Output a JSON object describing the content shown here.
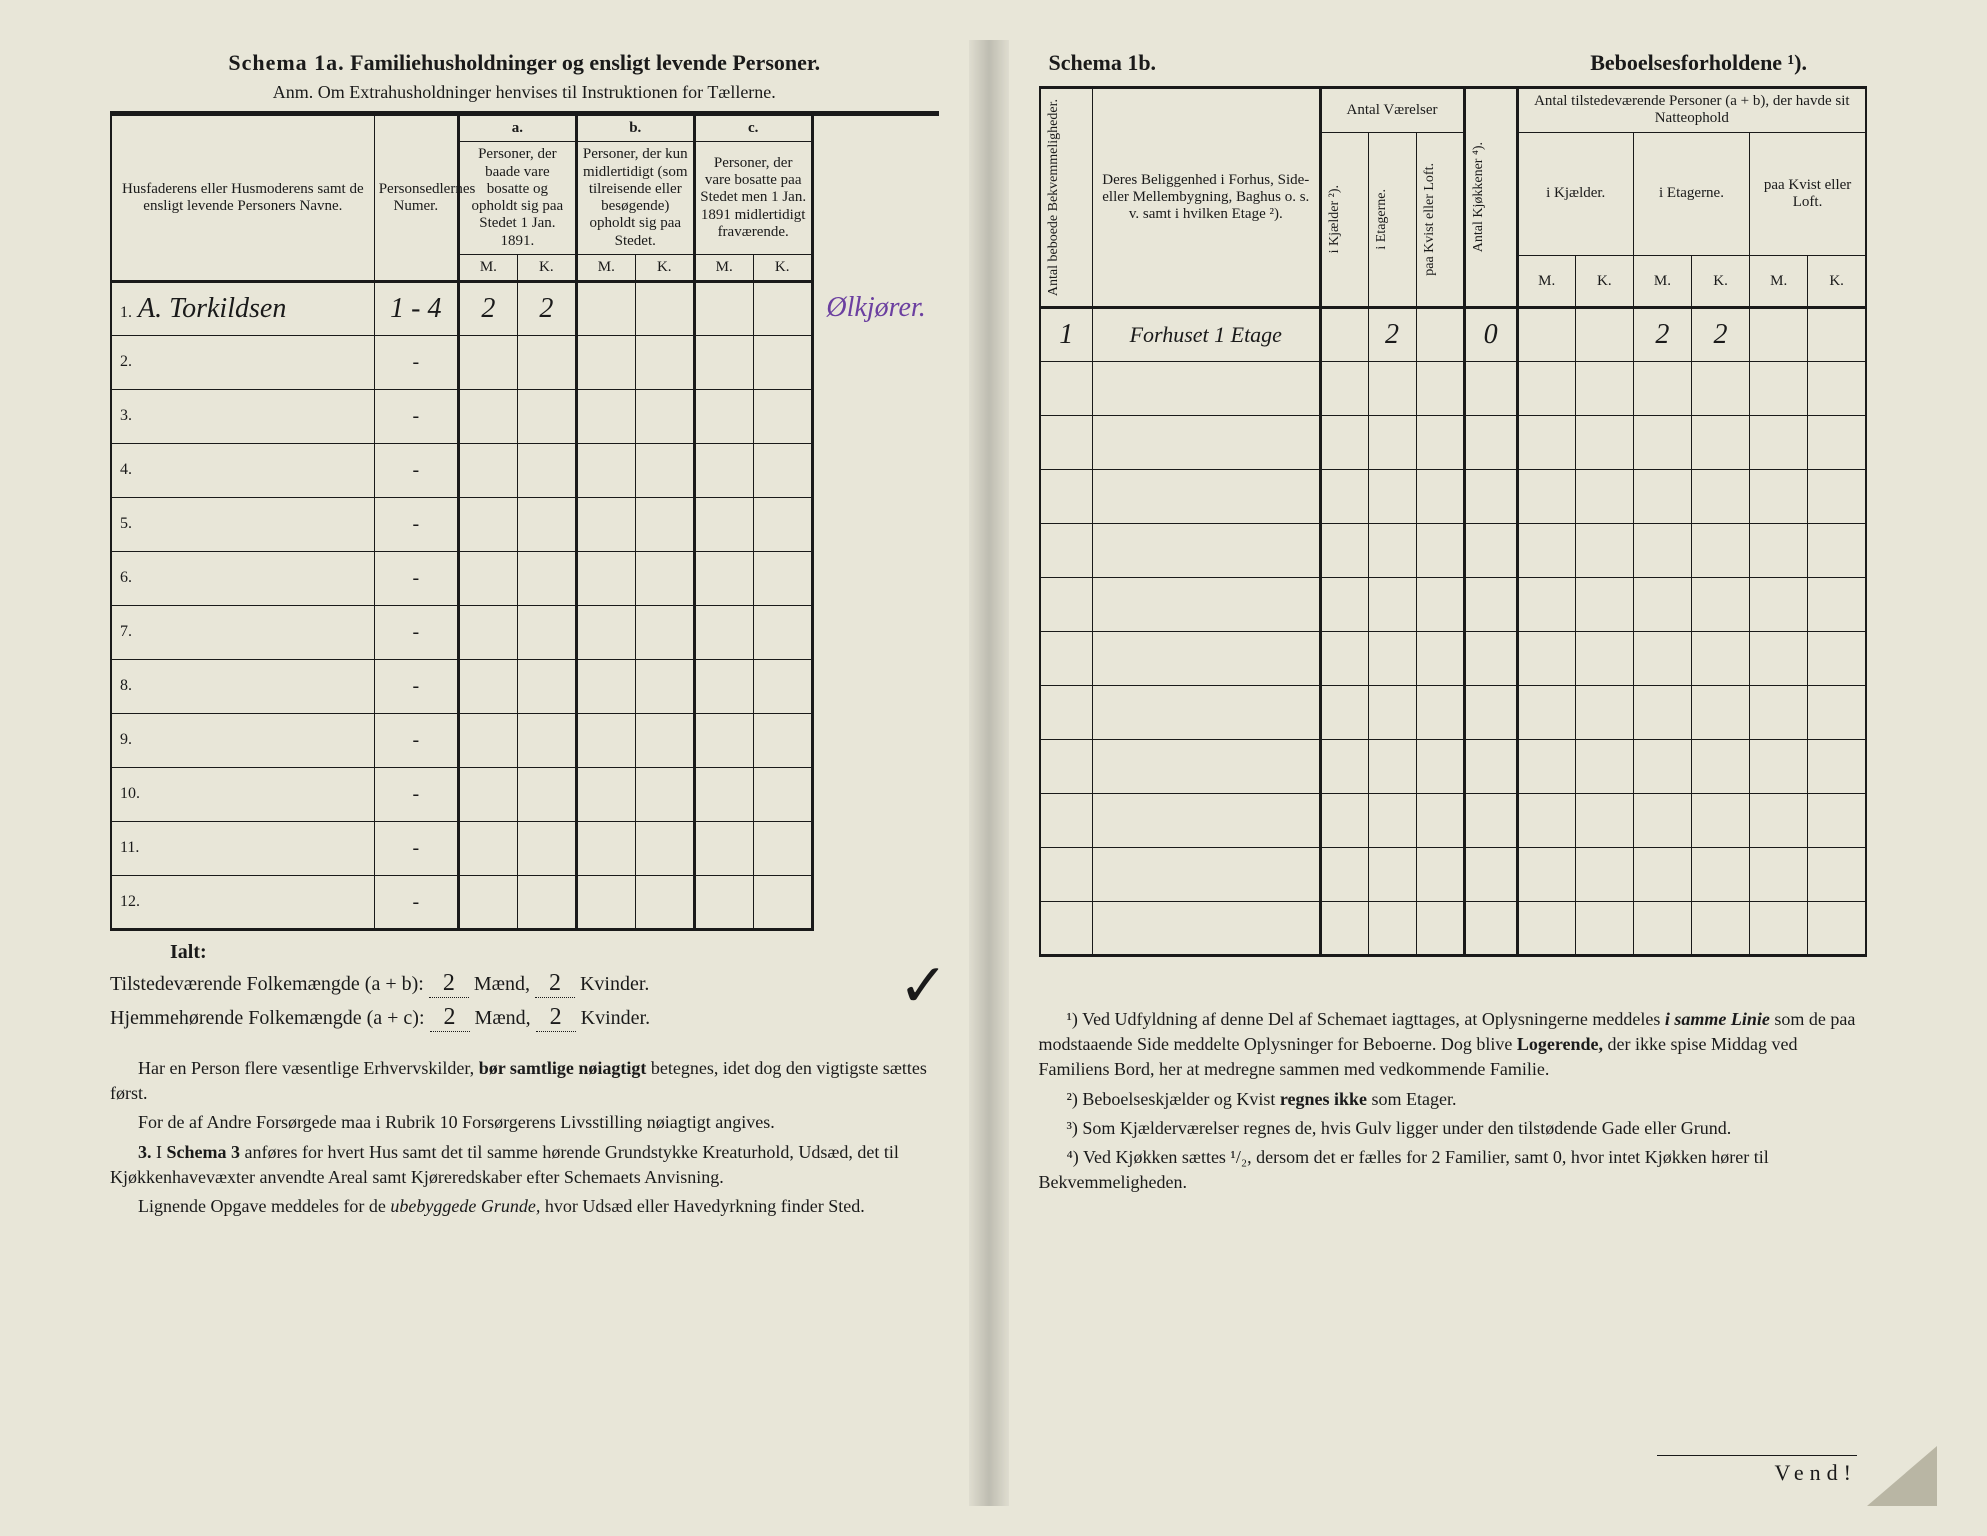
{
  "colors": {
    "paper": "#e8e6d8",
    "ink": "#1a1a1a",
    "purple_ink": "#6b3fa0",
    "dog_ear": "#b9b6a4"
  },
  "schema1a": {
    "title_lead": "Schema 1a.",
    "title_rest": "Familiehusholdninger og ensligt levende Personer.",
    "anm": "Anm. Om Extrahusholdninger henvises til Instruktionen for Tællerne.",
    "headers": {
      "name": "Husfaderens eller Husmoderens samt de ensligt levende Personers Navne.",
      "persnum": "Personsedlernes Numer.",
      "a_label": "a.",
      "a_text": "Personer, der baade vare bosatte og opholdt sig paa Stedet 1 Jan. 1891.",
      "b_label": "b.",
      "b_text": "Personer, der kun midlertidigt (som tilreisende eller besøgende) opholdt sig paa Stedet.",
      "c_label": "c.",
      "c_text": "Personer, der vare bosatte paa Stedet men 1 Jan. 1891 midlertidigt fraværende.",
      "M": "M.",
      "K": "K."
    },
    "rows": [
      {
        "n": "1.",
        "name": "A. Torkildsen",
        "num": "1 - 4",
        "aM": "2",
        "aK": "2",
        "bM": "",
        "bK": "",
        "cM": "",
        "cK": "",
        "ann": "Ølkjører."
      },
      {
        "n": "2.",
        "num": "-"
      },
      {
        "n": "3.",
        "num": "-"
      },
      {
        "n": "4.",
        "num": "-"
      },
      {
        "n": "5.",
        "num": "-"
      },
      {
        "n": "6.",
        "num": "-"
      },
      {
        "n": "7.",
        "num": "-"
      },
      {
        "n": "8.",
        "num": "-"
      },
      {
        "n": "9.",
        "num": "-"
      },
      {
        "n": "10.",
        "num": "-"
      },
      {
        "n": "11.",
        "num": "-"
      },
      {
        "n": "12.",
        "num": "-"
      }
    ],
    "totals": {
      "ialt": "Ialt:",
      "line1_label": "Tilstedeværende Folkemængde (a + b):",
      "line2_label": "Hjemmehørende Folkemængde (a + c):",
      "maend": "Mænd,",
      "kvinder": "Kvinder.",
      "t_m": "2",
      "t_k": "2",
      "h_m": "2",
      "h_k": "2",
      "checkmark": "✓"
    },
    "notes": {
      "p1a": "Har en Person flere væsentlige Erhvervskilder, ",
      "p1b": "bør samtlige nøiagtigt",
      "p1c": " betegnes, idet dog den vigtigste sættes først.",
      "p2": "For de af Andre Forsørgede maa i Rubrik 10 Forsørgerens Livsstilling nøiagtigt angives.",
      "p3_num": "3.",
      "p3a": "I ",
      "p3b": "Schema 3",
      "p3c": " anføres for hvert Hus samt det til samme hørende Grundstykke Kreaturhold, Udsæd, det til Kjøkkenhavevæxter anvendte Areal samt Kjøreredskaber efter Schemaets Anvisning.",
      "p4a": "Lignende Opgave meddeles for de ",
      "p4b": "ubebyggede Grunde,",
      "p4c": " hvor Udsæd eller Havedyrkning finder Sted."
    }
  },
  "schema1b": {
    "title_lead": "Schema 1b.",
    "title_rest": "Beboelsesforholdene ¹).",
    "headers": {
      "bekv": "Antal beboede Bekvemmeligheder.",
      "location": "Deres Beliggenhed i Forhus, Side- eller Mellembygning, Baghus o. s. v. samt i hvilken Etage ²).",
      "antal_vaer": "Antal Værelser",
      "v_kj": "i Kjælder ²).",
      "v_et": "i Etagerne.",
      "v_kv": "paa Kvist eller Loft.",
      "antal_kjok": "Antal Kjøkkener ⁴).",
      "persons": "Antal tilstedeværende Personer (a + b), der havde sit Natteophold",
      "p_kj": "i Kjælder.",
      "p_et": "i Etagerne.",
      "p_kv": "paa Kvist eller Loft.",
      "M": "M.",
      "K": "K."
    },
    "rows": [
      {
        "bk": "1",
        "loc": "Forhuset 1 Etage",
        "vkj": "",
        "vet": "2",
        "vkv": "",
        "kjok": "0",
        "pkj_m": "",
        "pkj_k": "",
        "pet_m": "2",
        "pet_k": "2",
        "pkv_m": "",
        "pkv_k": ""
      },
      {},
      {},
      {},
      {},
      {},
      {},
      {},
      {},
      {},
      {},
      {}
    ],
    "notes": {
      "n1a": "¹) Ved Udfyldning af denne Del af Schemaet iagttages, at Oplysningerne meddeles ",
      "n1b": "i samme Linie",
      "n1c": " som de paa modstaaende Side meddelte Oplysninger for Beboerne. Dog blive ",
      "n1d": "Logerende,",
      "n1e": " der ikke spise Middag ved Familiens Bord, her at medregne sammen med vedkommende Familie.",
      "n2a": "²) Beboelseskjælder og Kvist ",
      "n2b": "regnes ikke",
      "n2c": " som Etager.",
      "n3": "³) Som Kjælderværelser regnes de, hvis Gulv ligger under den tilstødende Gade eller Grund.",
      "n4": "⁴) Ved Kjøkken sættes ¹/₂, dersom det er fælles for 2 Familier, samt 0, hvor intet Kjøkken hører til Bekvemmeligheden."
    },
    "vend": "Vend!"
  }
}
